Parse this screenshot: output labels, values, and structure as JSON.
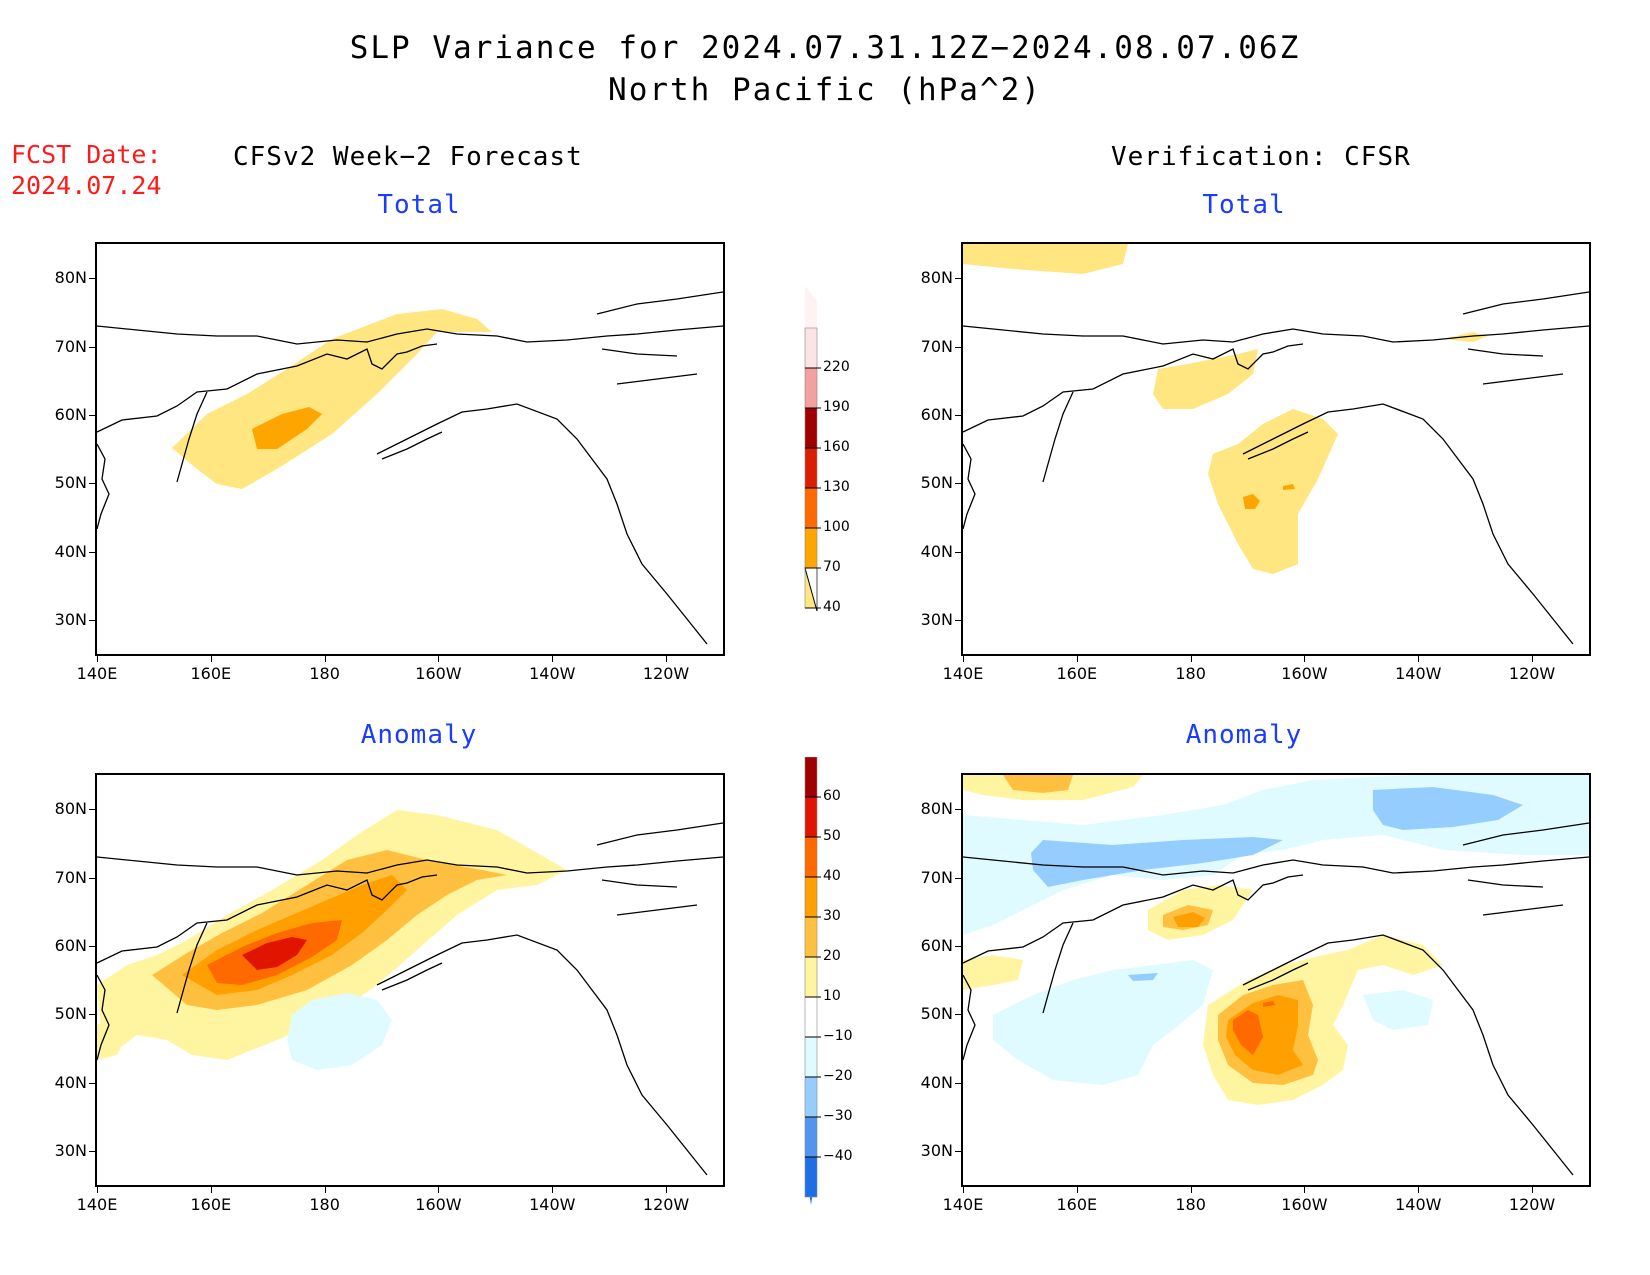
{
  "title": {
    "line1": "SLP Variance for 2024.07.31.12Z−2024.08.07.06Z",
    "line2": "North Pacific (hPa^2)"
  },
  "fcst_date": {
    "label": "FCST Date:",
    "value": "2024.07.24"
  },
  "columns": {
    "left": "CFSv2 Week−2 Forecast",
    "right": "Verification: CFSR"
  },
  "panel_titles": {
    "forecast_total": "Total",
    "verification_total": "Total",
    "forecast_anomaly": "Anomaly",
    "verification_anomaly": "Anomaly"
  },
  "map": {
    "lat_ticks": [
      "80N",
      "70N",
      "60N",
      "50N",
      "40N",
      "30N"
    ],
    "lon_ticks": [
      "140E",
      "160E",
      "180",
      "160W",
      "140W",
      "120W"
    ],
    "lat_values": [
      80,
      70,
      60,
      50,
      40,
      30
    ],
    "lon_values": [
      140,
      160,
      180,
      200,
      220,
      240
    ],
    "extent": {
      "lon_min": 140,
      "lon_max": 250,
      "lat_min": 25,
      "lat_max": 85
    }
  },
  "colorbars": {
    "total": {
      "labels": [
        "220",
        "190",
        "160",
        "130",
        "100",
        "70",
        "40"
      ],
      "colors": [
        "#fde4e4",
        "#f4a0a0",
        "#a00000",
        "#dc1e00",
        "#ff6a00",
        "#ffa500",
        "#ffe680"
      ]
    },
    "anomaly": {
      "labels": [
        "60",
        "50",
        "40",
        "30",
        "20",
        "10",
        "−10",
        "−20",
        "−30",
        "−40"
      ],
      "colors": [
        "#a00000",
        "#e11400",
        "#ff6a00",
        "#ffa000",
        "#ffc040",
        "#fff5a0",
        "#ffffff",
        "#e0fbff",
        "#96cdff",
        "#5095f0",
        "#1e6ee6"
      ]
    }
  },
  "colors": {
    "title_blue": "#1a3cff",
    "fcst_red": "#ff1a1a"
  }
}
